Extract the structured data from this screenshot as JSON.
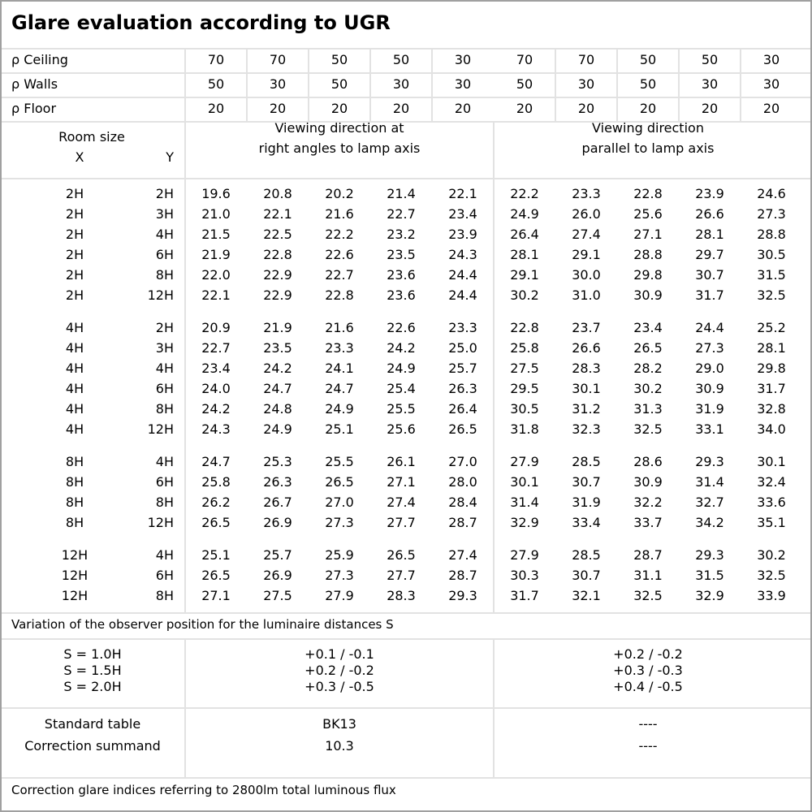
{
  "title": "Glare evaluation according to UGR",
  "reflectances": [
    {
      "label": "ρ Ceiling",
      "values": [
        "70",
        "70",
        "50",
        "50",
        "30",
        "70",
        "70",
        "50",
        "50",
        "30"
      ]
    },
    {
      "label": "ρ Walls",
      "values": [
        "50",
        "30",
        "50",
        "30",
        "30",
        "50",
        "30",
        "50",
        "30",
        "30"
      ]
    },
    {
      "label": "ρ Floor",
      "values": [
        "20",
        "20",
        "20",
        "20",
        "20",
        "20",
        "20",
        "20",
        "20",
        "20"
      ]
    }
  ],
  "header": {
    "room_size": "Room size",
    "x": "X",
    "y": "Y",
    "dir_right_1": "Viewing direction at",
    "dir_right_2": "right angles to lamp axis",
    "dir_parallel_1": "Viewing direction",
    "dir_parallel_2": "parallel to lamp axis"
  },
  "groups": [
    [
      {
        "x": "2H",
        "y": "2H",
        "v": [
          "19.6",
          "20.8",
          "20.2",
          "21.4",
          "22.1",
          "22.2",
          "23.3",
          "22.8",
          "23.9",
          "24.6"
        ]
      },
      {
        "x": "2H",
        "y": "3H",
        "v": [
          "21.0",
          "22.1",
          "21.6",
          "22.7",
          "23.4",
          "24.9",
          "26.0",
          "25.6",
          "26.6",
          "27.3"
        ]
      },
      {
        "x": "2H",
        "y": "4H",
        "v": [
          "21.5",
          "22.5",
          "22.2",
          "23.2",
          "23.9",
          "26.4",
          "27.4",
          "27.1",
          "28.1",
          "28.8"
        ]
      },
      {
        "x": "2H",
        "y": "6H",
        "v": [
          "21.9",
          "22.8",
          "22.6",
          "23.5",
          "24.3",
          "28.1",
          "29.1",
          "28.8",
          "29.7",
          "30.5"
        ]
      },
      {
        "x": "2H",
        "y": "8H",
        "v": [
          "22.0",
          "22.9",
          "22.7",
          "23.6",
          "24.4",
          "29.1",
          "30.0",
          "29.8",
          "30.7",
          "31.5"
        ]
      },
      {
        "x": "2H",
        "y": "12H",
        "v": [
          "22.1",
          "22.9",
          "22.8",
          "23.6",
          "24.4",
          "30.2",
          "31.0",
          "30.9",
          "31.7",
          "32.5"
        ]
      }
    ],
    [
      {
        "x": "4H",
        "y": "2H",
        "v": [
          "20.9",
          "21.9",
          "21.6",
          "22.6",
          "23.3",
          "22.8",
          "23.7",
          "23.4",
          "24.4",
          "25.2"
        ]
      },
      {
        "x": "4H",
        "y": "3H",
        "v": [
          "22.7",
          "23.5",
          "23.3",
          "24.2",
          "25.0",
          "25.8",
          "26.6",
          "26.5",
          "27.3",
          "28.1"
        ]
      },
      {
        "x": "4H",
        "y": "4H",
        "v": [
          "23.4",
          "24.2",
          "24.1",
          "24.9",
          "25.7",
          "27.5",
          "28.3",
          "28.2",
          "29.0",
          "29.8"
        ]
      },
      {
        "x": "4H",
        "y": "6H",
        "v": [
          "24.0",
          "24.7",
          "24.7",
          "25.4",
          "26.3",
          "29.5",
          "30.1",
          "30.2",
          "30.9",
          "31.7"
        ]
      },
      {
        "x": "4H",
        "y": "8H",
        "v": [
          "24.2",
          "24.8",
          "24.9",
          "25.5",
          "26.4",
          "30.5",
          "31.2",
          "31.3",
          "31.9",
          "32.8"
        ]
      },
      {
        "x": "4H",
        "y": "12H",
        "v": [
          "24.3",
          "24.9",
          "25.1",
          "25.6",
          "26.5",
          "31.8",
          "32.3",
          "32.5",
          "33.1",
          "34.0"
        ]
      }
    ],
    [
      {
        "x": "8H",
        "y": "4H",
        "v": [
          "24.7",
          "25.3",
          "25.5",
          "26.1",
          "27.0",
          "27.9",
          "28.5",
          "28.6",
          "29.3",
          "30.1"
        ]
      },
      {
        "x": "8H",
        "y": "6H",
        "v": [
          "25.8",
          "26.3",
          "26.5",
          "27.1",
          "28.0",
          "30.1",
          "30.7",
          "30.9",
          "31.4",
          "32.4"
        ]
      },
      {
        "x": "8H",
        "y": "8H",
        "v": [
          "26.2",
          "26.7",
          "27.0",
          "27.4",
          "28.4",
          "31.4",
          "31.9",
          "32.2",
          "32.7",
          "33.6"
        ]
      },
      {
        "x": "8H",
        "y": "12H",
        "v": [
          "26.5",
          "26.9",
          "27.3",
          "27.7",
          "28.7",
          "32.9",
          "33.4",
          "33.7",
          "34.2",
          "35.1"
        ]
      }
    ],
    [
      {
        "x": "12H",
        "y": "4H",
        "v": [
          "25.1",
          "25.7",
          "25.9",
          "26.5",
          "27.4",
          "27.9",
          "28.5",
          "28.7",
          "29.3",
          "30.2"
        ]
      },
      {
        "x": "12H",
        "y": "6H",
        "v": [
          "26.5",
          "26.9",
          "27.3",
          "27.7",
          "28.7",
          "30.3",
          "30.7",
          "31.1",
          "31.5",
          "32.5"
        ]
      },
      {
        "x": "12H",
        "y": "8H",
        "v": [
          "27.1",
          "27.5",
          "27.9",
          "28.3",
          "29.3",
          "31.7",
          "32.1",
          "32.5",
          "32.9",
          "33.9"
        ]
      }
    ]
  ],
  "variation": {
    "label": "Variation of the observer position for the luminaire distances S",
    "rows": [
      {
        "s": "S = 1.0H",
        "right": "+0.1 / -0.1",
        "parallel": "+0.2 / -0.2"
      },
      {
        "s": "S = 1.5H",
        "right": "+0.2 / -0.2",
        "parallel": "+0.3 / -0.3"
      },
      {
        "s": "S = 2.0H",
        "right": "+0.3 / -0.5",
        "parallel": "+0.4 / -0.5"
      }
    ]
  },
  "standard": {
    "table_label": "Standard table",
    "table_right": "BK13",
    "table_parallel": "----",
    "summand_label": "Correction summand",
    "summand_right": "10.3",
    "summand_parallel": "----"
  },
  "footer": "Correction glare indices referring to 2800lm total luminous flux"
}
